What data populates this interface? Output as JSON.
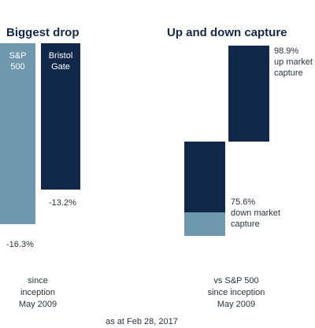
{
  "colors": {
    "sp500": "#6f97ae",
    "bristol": "#12284b"
  },
  "left": {
    "title": "Biggest drop",
    "footnote": "since\ninception\nMay 2009"
  },
  "right": {
    "title": "Up and down capture",
    "footnote": "vs S&P 500\nsince inception\nMay 2009"
  },
  "as_at": "as at Feb 28, 2017",
  "chart_data": [
    {
      "type": "bar",
      "title": "Biggest drop",
      "categories": [
        "S&P\n500",
        "Bristol\nGate"
      ],
      "values": [
        -16.3,
        -13.2
      ],
      "value_labels": [
        "-16.3%",
        "-13.2%"
      ],
      "ylim": [
        -16.3,
        0
      ]
    },
    {
      "type": "bar",
      "title": "Up and down capture",
      "categories": [
        "up market capture",
        "down market capture"
      ],
      "values": [
        98.9,
        75.6
      ],
      "value_labels": [
        "98.9%\nup market\ncapture",
        "75.6%\ndown market\ncapture"
      ]
    }
  ]
}
